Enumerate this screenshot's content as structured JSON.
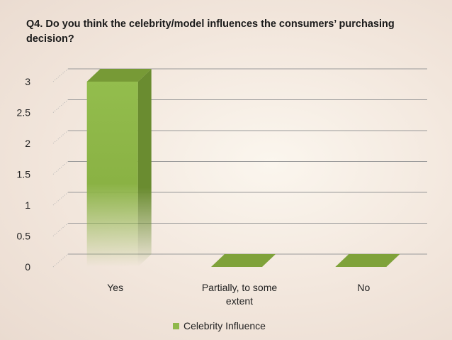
{
  "slide": {
    "title": "Q4. Do you think the celebrity/model influences the consumers’ purchasing decision?"
  },
  "chart_data": {
    "type": "bar",
    "categories": [
      "Yes",
      "Partially, to some extent",
      "No"
    ],
    "category_lines": [
      [
        "Yes"
      ],
      [
        "Partially, to some",
        "extent"
      ],
      [
        "No"
      ]
    ],
    "series": [
      {
        "name": "Celebrity Influence",
        "values": [
          3,
          0,
          0
        ],
        "color": "#8fb84a"
      }
    ],
    "yticks": [
      "0",
      "0.5",
      "1",
      "1.5",
      "2",
      "2.5",
      "3"
    ],
    "ylim": [
      0,
      3
    ],
    "grid": true,
    "legend": "bottom",
    "style": "3d-column"
  }
}
